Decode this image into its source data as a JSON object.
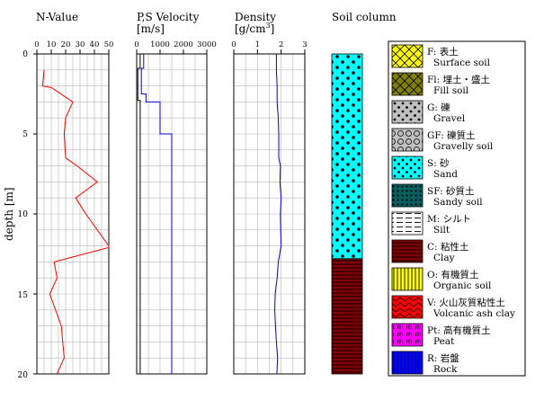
{
  "panels": {
    "nvalue": {
      "title": "N-Value"
    },
    "velocity": {
      "title_line1": "P,S Velocity",
      "title_line2": "[m/s]"
    },
    "density": {
      "title_line1": "Density",
      "title_line2": "[g/cm",
      "title_sup": "3",
      "title_close": "]"
    },
    "soil": {
      "title": "Soil column"
    }
  },
  "depth_axis": {
    "label": "depth [m]"
  },
  "chart_data": [
    {
      "type": "line",
      "title": "N-Value",
      "xlim": [
        0,
        50
      ],
      "xticks": [
        0,
        10,
        20,
        30,
        40,
        50
      ],
      "ylim": [
        0,
        20
      ],
      "yticks": [
        0,
        5,
        10,
        15,
        20
      ],
      "ylabel": "depth [m]",
      "grid": true,
      "series": [
        {
          "color": "#ff0000",
          "points": [
            [
              5,
              1
            ],
            [
              4,
              2
            ],
            [
              10,
              2.1
            ],
            [
              25,
              3
            ],
            [
              20,
              4
            ],
            [
              19,
              5
            ],
            [
              20,
              6.5
            ],
            [
              28,
              7
            ],
            [
              42,
              8
            ],
            [
              27,
              9
            ],
            [
              34,
              10
            ],
            [
              50,
              12
            ],
            [
              50,
              12.1
            ],
            [
              12,
              13
            ],
            [
              14,
              14
            ],
            [
              9,
              15
            ],
            [
              13,
              16
            ],
            [
              17,
              17
            ],
            [
              18,
              18
            ],
            [
              19,
              19
            ],
            [
              14,
              20
            ]
          ]
        }
      ]
    },
    {
      "type": "line",
      "title": "P,S Velocity",
      "xlabel": "[m/s]",
      "xlim": [
        0,
        3000
      ],
      "xticks": [
        0,
        1000,
        2000,
        3000
      ],
      "ylim": [
        0,
        20
      ],
      "grid": true,
      "series": [
        {
          "color": "#000000",
          "points": [
            [
              150,
              0
            ],
            [
              150,
              0.9
            ],
            [
              50,
              0.9
            ],
            [
              50,
              2.9
            ],
            [
              150,
              2.9
            ],
            [
              150,
              20
            ]
          ]
        },
        {
          "color": "#0000cc",
          "points": [
            [
              300,
              0
            ],
            [
              300,
              0.9
            ],
            [
              200,
              0.9
            ],
            [
              200,
              2.5
            ],
            [
              400,
              2.5
            ],
            [
              400,
              3
            ],
            [
              1000,
              3
            ],
            [
              1000,
              5
            ],
            [
              1500,
              5
            ],
            [
              1500,
              20
            ]
          ]
        }
      ]
    },
    {
      "type": "line",
      "title": "Density",
      "xlabel": "[g/cm3]",
      "xlim": [
        0,
        3
      ],
      "xticks": [
        0,
        1,
        2,
        3
      ],
      "ylim": [
        0,
        20
      ],
      "grid": true,
      "series": [
        {
          "color": "#0000cc",
          "points": [
            [
              1.8,
              0
            ],
            [
              1.8,
              1
            ],
            [
              1.83,
              2
            ],
            [
              1.83,
              3
            ],
            [
              1.88,
              4
            ],
            [
              1.9,
              5
            ],
            [
              1.9,
              6
            ],
            [
              1.9,
              6.5
            ],
            [
              1.97,
              7
            ],
            [
              1.95,
              8
            ],
            [
              2.0,
              9
            ],
            [
              1.97,
              10
            ],
            [
              1.98,
              11
            ],
            [
              2.0,
              12
            ],
            [
              1.88,
              13
            ],
            [
              1.83,
              14
            ],
            [
              1.75,
              15
            ],
            [
              1.73,
              16
            ],
            [
              1.76,
              17
            ],
            [
              1.8,
              18
            ],
            [
              1.85,
              19
            ],
            [
              1.82,
              20
            ]
          ]
        }
      ]
    }
  ],
  "soil_column": {
    "layers": [
      {
        "code": "S",
        "top": 0,
        "bottom": 12.8
      },
      {
        "code": "C",
        "top": 12.8,
        "bottom": 20
      }
    ]
  },
  "legend": [
    {
      "code": "F",
      "jp": "F: 表土",
      "en": "Surface soil",
      "color": "#ffff00",
      "pattern": "x"
    },
    {
      "code": "Fl",
      "jp": "Fl: 埋土・盛土",
      "en": "Fill soil",
      "color": "#808000",
      "pattern": "x"
    },
    {
      "code": "G",
      "jp": "G: 礫",
      "en": "Gravel",
      "color": "#c0c0c0",
      "pattern": "dots"
    },
    {
      "code": "GF",
      "jp": "GF: 礫質土",
      "en": "Gravelly soil",
      "color": "#c0c0c0",
      "pattern": "circles"
    },
    {
      "code": "S",
      "jp": "S: 砂",
      "en": "Sand",
      "color": "#00ffff",
      "pattern": "dots"
    },
    {
      "code": "SF",
      "jp": "SF: 砂質土",
      "en": "Sandy soil",
      "color": "#006060",
      "pattern": "finedots"
    },
    {
      "code": "M",
      "jp": "M: シルト",
      "en": "Silt",
      "color": "#ffffff",
      "pattern": "dashes"
    },
    {
      "code": "C",
      "jp": "C: 粘性土",
      "en": "Clay",
      "color": "#800000",
      "pattern": "hlines"
    },
    {
      "code": "O",
      "jp": "O: 有機質土",
      "en": "Organic soil",
      "color": "#ffff00",
      "pattern": "vlines"
    },
    {
      "code": "V",
      "jp": "V: 火山灰質粘性土",
      "en": "Volcanic ash clay",
      "color": "#ff0000",
      "pattern": "zigzag"
    },
    {
      "code": "Pt",
      "jp": "Pt: 高有機質土",
      "en": "Peat",
      "color": "#ff00ff",
      "pattern": "grass"
    },
    {
      "code": "R",
      "jp": "R: 岩盤",
      "en": "Rock",
      "color": "#0000ff",
      "pattern": "vlines-dark"
    }
  ]
}
